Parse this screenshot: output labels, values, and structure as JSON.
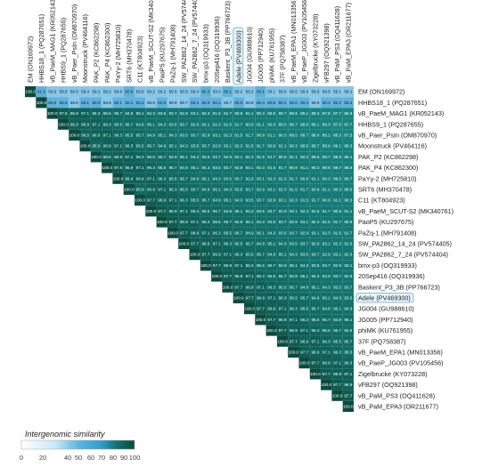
{
  "chart_data": {
    "type": "heatmap",
    "title": "",
    "genomes": [
      "EM (ON169972)",
      "HHBS18_1 (PQ287651)",
      "vB_PaeM_MAG1 (KR052143)",
      "HHBS9_1 (PQ287655)",
      "vB_Paer_PsIn (OM870970)",
      "Moonstruck (PV464116)",
      "PAK_P2 (KC862298)",
      "PAK_P4 (KC862300)",
      "PaYy-2 (MH725810)",
      "SRT6 (MH370478)",
      "C11 (KT804923)",
      "vB_PaeM_SCUT-S2 (MK340761)",
      "PaoP5 (KU297675)",
      "PaZq-1 (MH791408)",
      "SW_PA2862_14_24 (PV574405)",
      "SW_PA2862_7_24 (PV574404)",
      "bmx-p3 (OQ319933)",
      "20Sep416 (OQ319936)",
      "Baskent_P3_3B (PP766723)",
      "Adele (PV469300)",
      "JG004 (GU988610)",
      "JG005 (PP712940)",
      "phiMK (KU761955)",
      "37F (PQ758387)",
      "vB_PaeM_EPA1 (MN013356)",
      "vB_PaeP_JG003 (PV105456)",
      "Zigelbrucke (KY073228)",
      "vFB297 (OQ921398)",
      "vB_PaM_PS3 (OQ411628)",
      "vB_PaM_EPA3 (OR211677)"
    ],
    "highlighted": "Adele (PV469300)",
    "diagonal": 100.0,
    "row0_values": [
      100.0,
      61.9,
      59.6,
      59.6,
      59.5,
      59.4,
      59.2,
      59.2,
      59.8,
      60.8,
      59.9,
      59.2,
      59.2,
      59.8,
      58.9,
      59.4,
      60.3,
      59.3,
      60.1,
      59.2,
      58.2,
      60.1,
      59.1,
      58.6,
      59.5,
      59.8,
      59.8,
      59.8,
      59.1,
      59.1
    ],
    "row1_values": [
      100.0,
      60.6,
      60.6,
      59.6,
      60.1,
      60.0,
      59.5,
      60.1,
      60.1,
      60.1,
      59.9,
      60.5,
      59.8,
      59.7,
      60.4,
      60.0,
      60.1,
      59.7,
      60.0,
      59.8,
      60.4,
      60.6,
      60.4,
      60.0,
      60.4,
      59.9,
      60.3,
      60.2,
      60.2
    ],
    "near_diagonal_values": [
      97.5,
      96.9,
      96.5,
      95.9,
      96.6,
      97.8,
      96.4,
      95.9
    ],
    "legend": {
      "title": "Intergenomic similarity",
      "ticks": [
        0,
        20,
        40,
        50,
        60,
        70,
        80,
        90,
        100
      ],
      "colors": [
        "#ffffff",
        "#c8eaf6",
        "#2f9fd3",
        "#11706a",
        "#0b4a3e"
      ]
    }
  }
}
